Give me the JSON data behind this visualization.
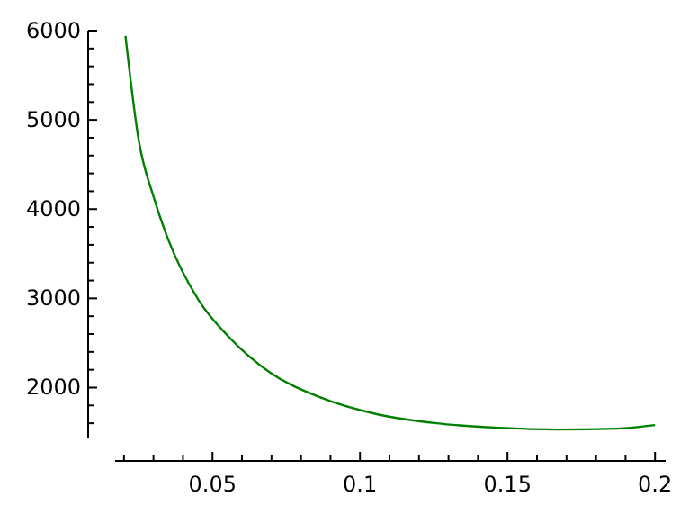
{
  "chart_data": {
    "type": "line",
    "x": [
      0.0205,
      0.0249,
      0.0302,
      0.0351,
      0.0453,
      0.0555,
      0.0695,
      0.0858,
      0.106,
      0.126,
      0.147,
      0.167,
      0.187,
      0.2
    ],
    "series": [
      {
        "color": "#008000",
        "values": [
          5940,
          4790,
          4120,
          3650,
          2980,
          2570,
          2170,
          1900,
          1700,
          1600,
          1550,
          1530,
          1540,
          1580
        ]
      }
    ],
    "xlim": [
      0.017,
      0.2036
    ],
    "ylim": [
      1440,
      6000
    ],
    "xticks": [
      {
        "value": 0.02,
        "label": null
      },
      {
        "value": 0.03,
        "label": null
      },
      {
        "value": 0.04,
        "label": null
      },
      0.05,
      {
        "value": 0.06,
        "label": null
      },
      {
        "value": 0.07,
        "label": null
      },
      {
        "value": 0.08,
        "label": null
      },
      {
        "value": 0.09,
        "label": null
      },
      0.1,
      {
        "value": 0.11,
        "label": null
      },
      {
        "value": 0.12,
        "label": null
      },
      {
        "value": 0.13,
        "label": null
      },
      {
        "value": 0.14,
        "label": null
      },
      0.15,
      {
        "value": 0.16,
        "label": null
      },
      {
        "value": 0.17,
        "label": null
      },
      {
        "value": 0.18,
        "label": null
      },
      {
        "value": 0.19,
        "label": null
      },
      0.2
    ],
    "yticks": [
      {
        "value": 1600,
        "label": null
      },
      {
        "value": 1800,
        "label": null
      },
      2000,
      {
        "value": 2200,
        "label": null
      },
      {
        "value": 2400,
        "label": null
      },
      {
        "value": 2600,
        "label": null
      },
      {
        "value": 2800,
        "label": null
      },
      3000,
      {
        "value": 3200,
        "label": null
      },
      {
        "value": 3400,
        "label": null
      },
      {
        "value": 3600,
        "label": null
      },
      {
        "value": 3800,
        "label": null
      },
      4000,
      {
        "value": 4200,
        "label": null
      },
      {
        "value": 4400,
        "label": null
      },
      {
        "value": 4600,
        "label": null
      },
      {
        "value": 4800,
        "label": null
      },
      5000,
      {
        "value": 5200,
        "label": null
      },
      {
        "value": 5400,
        "label": null
      },
      {
        "value": 5600,
        "label": null
      },
      {
        "value": 5800,
        "label": null
      },
      6000
    ],
    "grid": false,
    "marker": "none",
    "line_style": "solid"
  }
}
